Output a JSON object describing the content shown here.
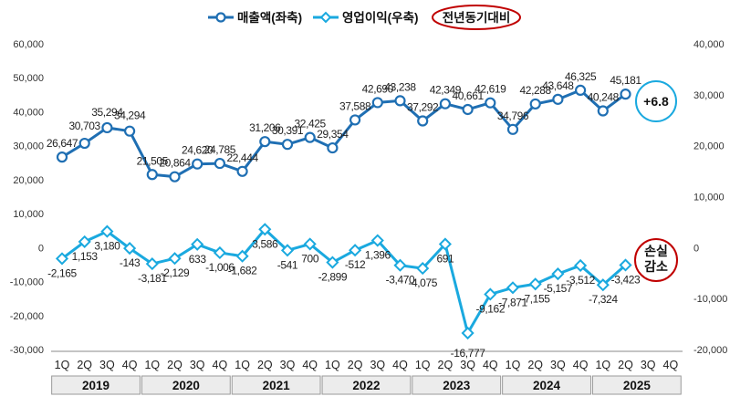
{
  "chart_data": {
    "type": "line",
    "title": "",
    "legend": {
      "placement": "top-center",
      "badge": "전년동기대비",
      "badge_color": "#c00000"
    },
    "categories": [
      "1Q",
      "2Q",
      "3Q",
      "4Q",
      "1Q",
      "2Q",
      "3Q",
      "4Q",
      "1Q",
      "2Q",
      "3Q",
      "4Q",
      "1Q",
      "2Q",
      "3Q",
      "4Q",
      "1Q",
      "2Q",
      "3Q",
      "4Q",
      "1Q",
      "2Q",
      "3Q",
      "4Q",
      "1Q",
      "2Q",
      "3Q",
      "4Q"
    ],
    "year_groups": [
      {
        "label": "2019",
        "span": 4
      },
      {
        "label": "2020",
        "span": 4
      },
      {
        "label": "2021",
        "span": 4
      },
      {
        "label": "2022",
        "span": 4
      },
      {
        "label": "2023",
        "span": 4
      },
      {
        "label": "2024",
        "span": 4
      },
      {
        "label": "2025",
        "span": 4
      }
    ],
    "y_left": {
      "ylim": [
        -30000,
        60000
      ],
      "ticks": [
        -30000,
        -20000,
        -10000,
        0,
        10000,
        20000,
        30000,
        40000,
        50000,
        60000
      ],
      "tick_labels": [
        "-30,000",
        "-20,000",
        "-10,000",
        "0",
        "10,000",
        "20,000",
        "30,000",
        "40,000",
        "50,000",
        "60,000"
      ]
    },
    "y_right": {
      "ylim": [
        -20000,
        40000
      ],
      "ticks": [
        -20000,
        -10000,
        0,
        10000,
        20000,
        30000,
        40000
      ],
      "tick_labels": [
        "-20,000",
        "-10,000",
        "0",
        "10,000",
        "20,000",
        "30,000",
        "40,000"
      ]
    },
    "grid": false,
    "series": [
      {
        "name": "매출액(좌축)",
        "axis": "left",
        "marker": "circle",
        "color": "#1f6fb3",
        "values": [
          26647,
          30703,
          35294,
          34294,
          21505,
          20864,
          24620,
          24785,
          22444,
          31206,
          30391,
          32425,
          29354,
          37588,
          42690,
          43238,
          37292,
          42349,
          40661,
          42619,
          34796,
          42288,
          43648,
          46325,
          40248,
          45181,
          null,
          null
        ],
        "labels": [
          "26,647",
          "30,703",
          "35,294",
          "34,294",
          "21,505",
          "20,864",
          "24,620",
          "24,785",
          "22,444",
          "31,206",
          "30,391",
          "32,425",
          "29,354",
          "37,588",
          "42,690",
          "43,238",
          "37,292",
          "42,349",
          "40,661",
          "42,619",
          "34,796",
          "42,288",
          "43,648",
          "46,325",
          "40,248",
          "45,181",
          "",
          ""
        ]
      },
      {
        "name": "영업이익(우축)",
        "axis": "right",
        "marker": "diamond",
        "color": "#1aa9df",
        "values": [
          -2165,
          1153,
          3180,
          -143,
          -3181,
          -2129,
          633,
          -1006,
          -1682,
          3586,
          -541,
          700,
          -2899,
          -512,
          1396,
          -3470,
          -4075,
          691,
          -16777,
          -9162,
          -7871,
          -7155,
          -5157,
          -3512,
          -7324,
          -3423,
          null,
          null
        ],
        "labels": [
          "-2,165",
          "1,153",
          "3,180",
          "-143",
          "-3,181",
          "-2,129",
          "633",
          "-1,006",
          "-1,682",
          "3,586",
          "-541",
          "700",
          "-2,899",
          "-512",
          "1,396",
          "-3,470",
          "-4,075",
          "691",
          "-16,777",
          "-9,162",
          "-7,871",
          "-7,155",
          "-5,157",
          "-3,512",
          "-7,324",
          "-3,423",
          "",
          ""
        ]
      }
    ],
    "annotations": [
      {
        "text": "+6.8",
        "series": 0,
        "color": "#1aa9df"
      },
      {
        "text": "손실\n감소",
        "series": 1,
        "color": "#c00000"
      }
    ]
  }
}
